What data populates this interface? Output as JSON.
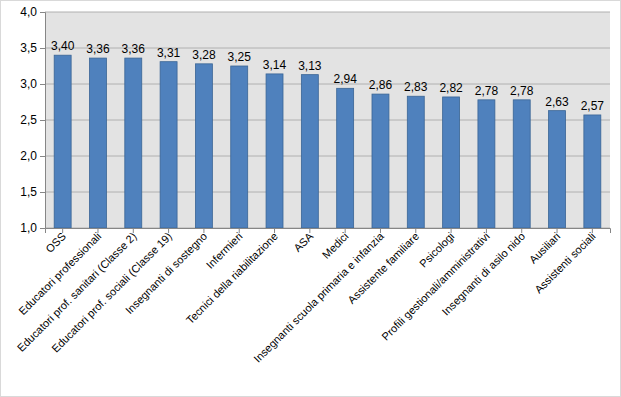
{
  "chart_data": {
    "type": "bar",
    "categories": [
      "OSS",
      "Educatori professionali",
      "Educatori prof. sanitari (Classe 2)",
      "Educatori prof. sociali (Classe 19)",
      "Insegnanti di sostegno",
      "Infermieri",
      "Tecnici della riabilitazione",
      "ASA",
      "Medici",
      "Insegnanti scuola primaria e infanzia",
      "Assistente familiare",
      "Psicologi",
      "Profili gestionali/amministrativi",
      "Insegnanti di asilo nido",
      "Ausiliari",
      "Assistenti sociali"
    ],
    "values": [
      3.4,
      3.36,
      3.36,
      3.31,
      3.28,
      3.25,
      3.14,
      3.13,
      2.94,
      2.86,
      2.83,
      2.82,
      2.78,
      2.78,
      2.63,
      2.57
    ],
    "value_labels": [
      "3,40",
      "3,36",
      "3,36",
      "3,31",
      "3,28",
      "3,25",
      "3,14",
      "3,13",
      "2,94",
      "2,86",
      "2,83",
      "2,82",
      "2,78",
      "2,78",
      "2,63",
      "2,57"
    ],
    "color": "#4f81bd",
    "ylim": [
      1.0,
      4.0
    ],
    "yticks": [
      {
        "value": 1.0,
        "label": "1,0"
      },
      {
        "value": 1.5,
        "label": "1,5"
      },
      {
        "value": 2.0,
        "label": "2,0"
      },
      {
        "value": 2.5,
        "label": "2,5"
      },
      {
        "value": 3.0,
        "label": "3,0"
      },
      {
        "value": 3.5,
        "label": "3,5"
      },
      {
        "value": 4.0,
        "label": "4,0"
      }
    ],
    "grid": true,
    "data_labels": true
  }
}
